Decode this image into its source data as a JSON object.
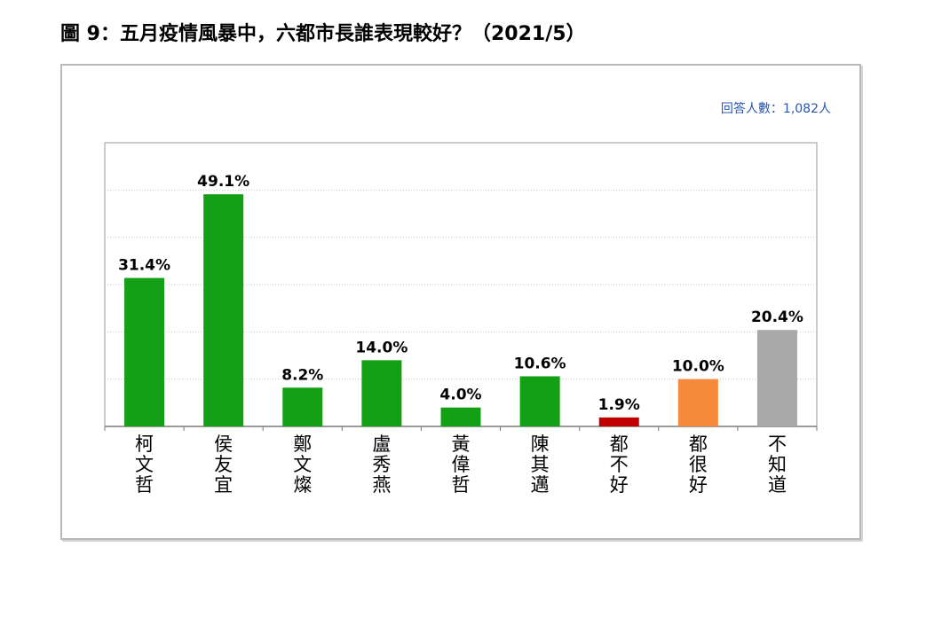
{
  "title": "圖 9：五月疫情風暴中，六都市長誰表現較好？（2021/5）",
  "respondents": "回答人數：1,082人",
  "chart_data": {
    "type": "bar",
    "title": "圖 9：五月疫情風暴中，六都市長誰表現較好？（2021/5）",
    "xlabel": "",
    "ylabel": "",
    "ylim": [
      0,
      60
    ],
    "grid": true,
    "categories": [
      "柯文哲",
      "侯友宜",
      "鄭文燦",
      "盧秀燕",
      "黃偉哲",
      "陳其邁",
      "都不好",
      "都很好",
      "不知道"
    ],
    "values": [
      31.4,
      49.1,
      8.2,
      14.0,
      4.0,
      10.6,
      1.9,
      10.0,
      20.4
    ],
    "labels": [
      "31.4%",
      "49.1%",
      "8.2%",
      "14.0%",
      "4.0%",
      "10.6%",
      "1.9%",
      "10.0%",
      "20.4%"
    ],
    "colors": [
      "#14a014",
      "#14a014",
      "#14a014",
      "#14a014",
      "#14a014",
      "#14a014",
      "#c00000",
      "#f58a3c",
      "#a8a8a8"
    ]
  }
}
